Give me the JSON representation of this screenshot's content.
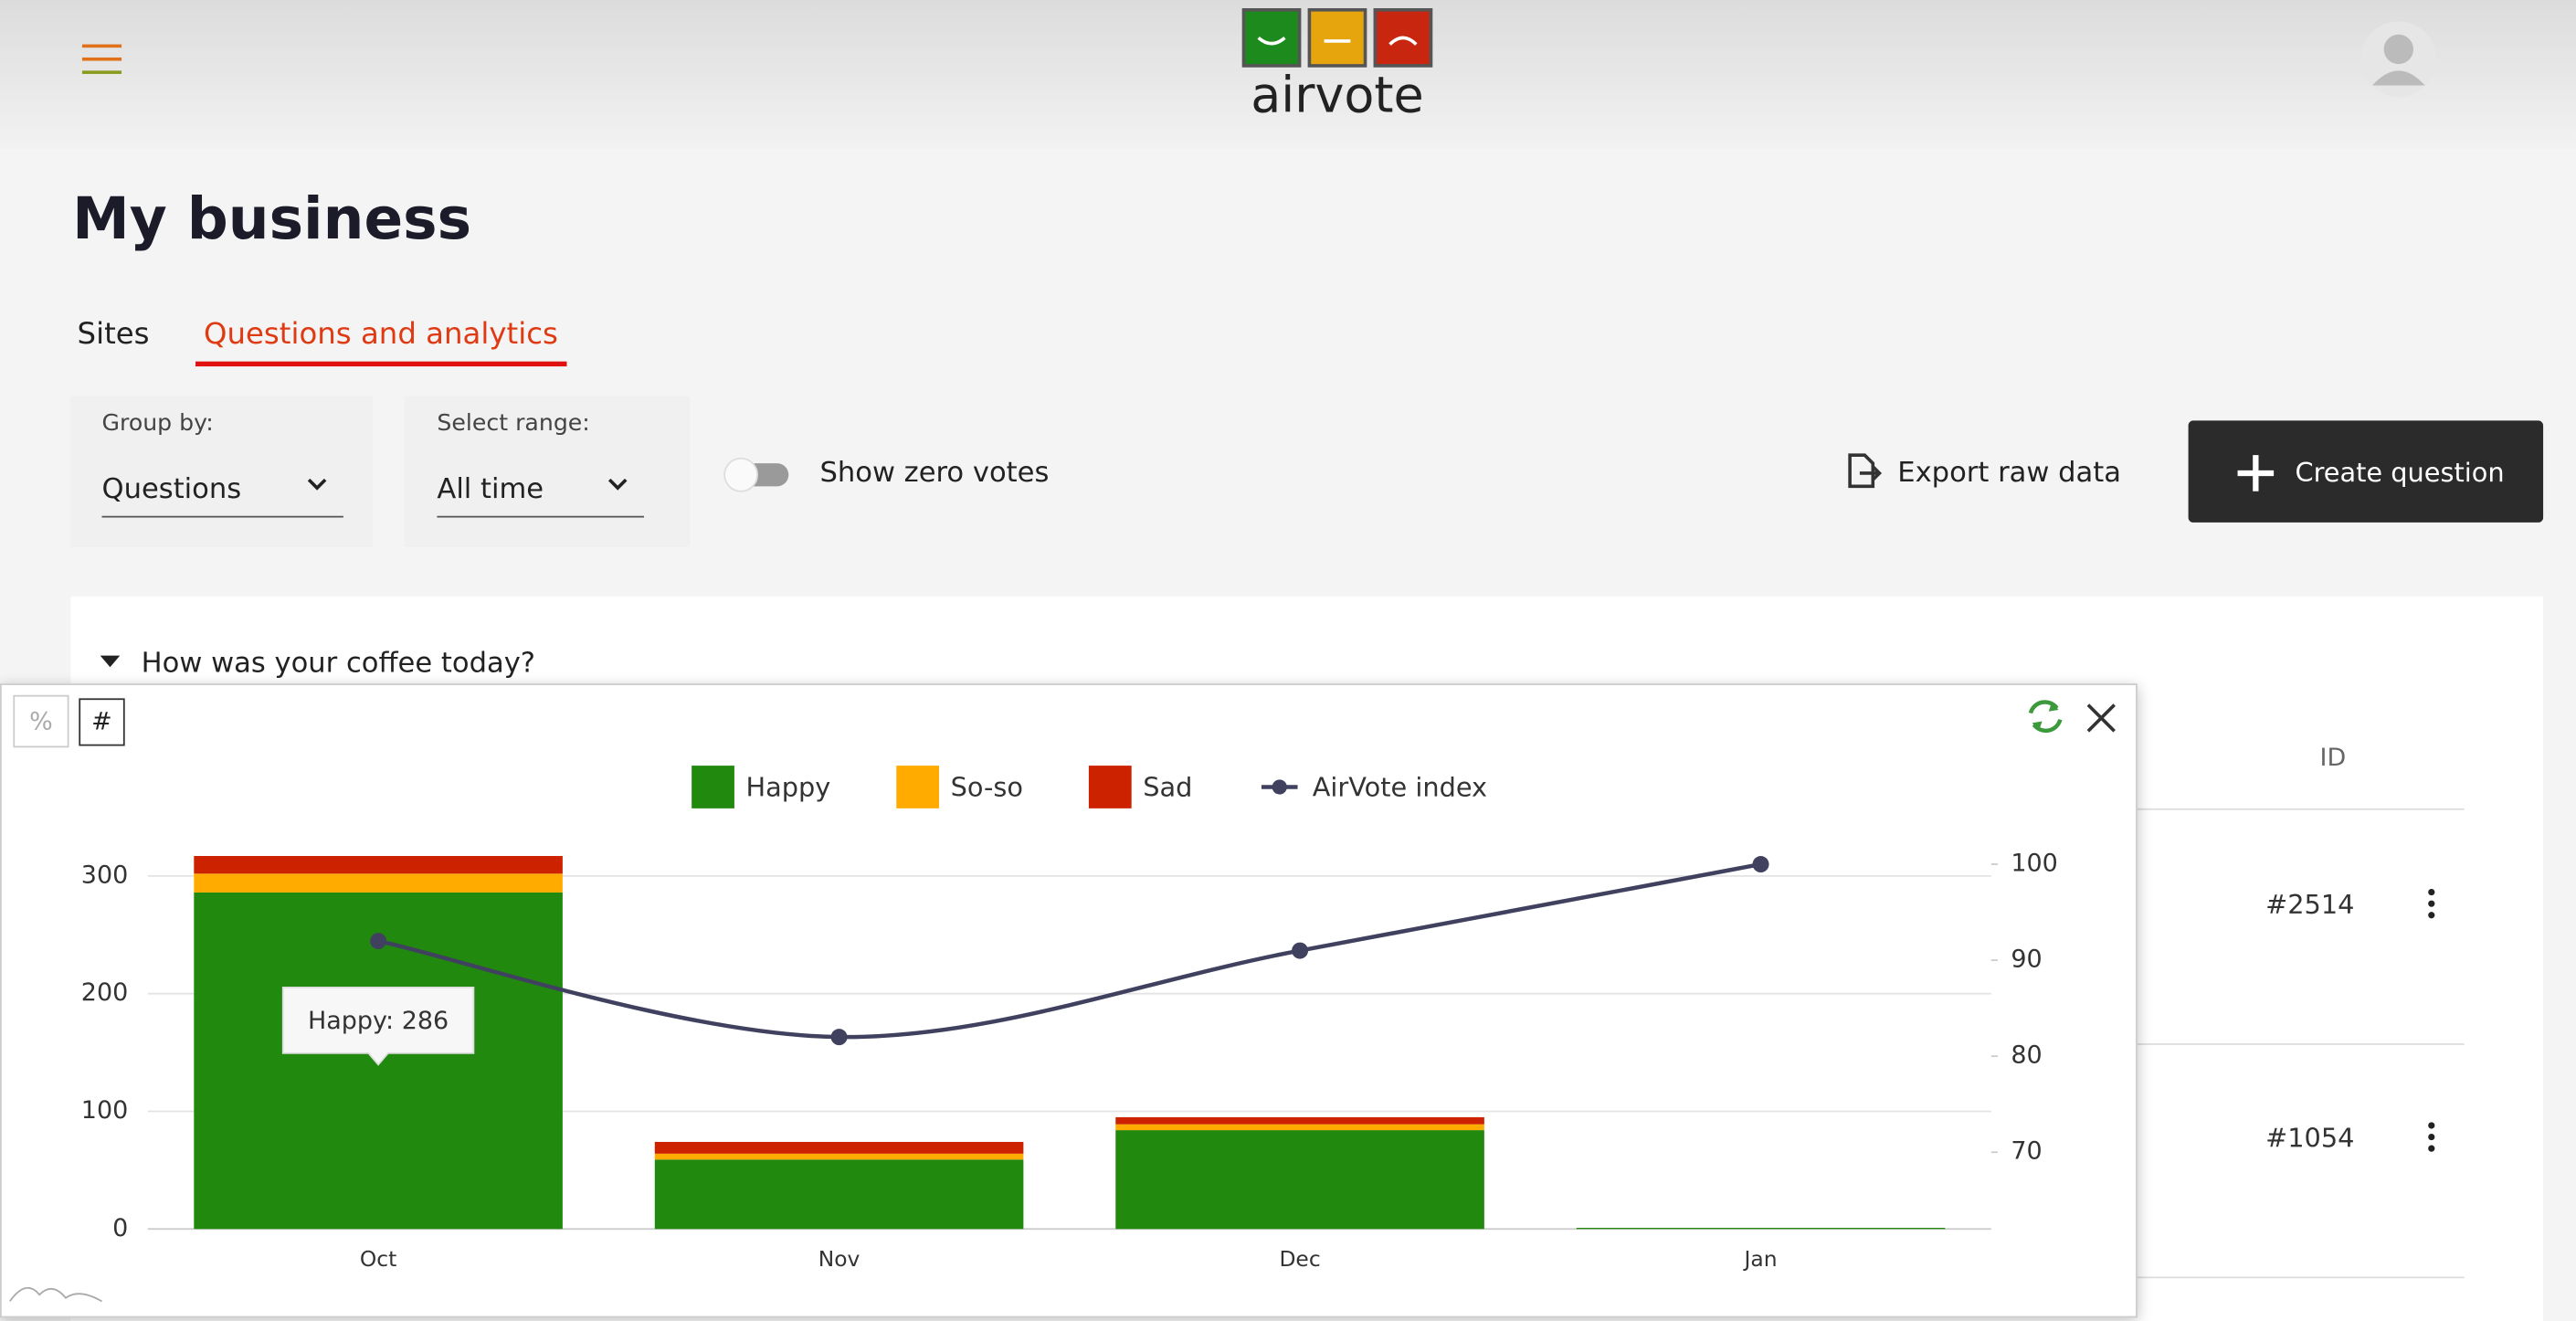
{
  "header": {
    "logo": "airvote"
  },
  "page": {
    "title": "My business",
    "tabs": [
      "Sites",
      "Questions and analytics"
    ]
  },
  "filters": {
    "group_by_label": "Group by:",
    "group_by_value": "Questions",
    "range_label": "Select range:",
    "range_value": "All time",
    "toggle": "Show zero votes"
  },
  "actions": {
    "export": "Export raw data",
    "create": "Create question"
  },
  "question": "How was your coffee today?",
  "table": {
    "id_header": "ID",
    "ids": [
      "#2514",
      "#1054"
    ]
  },
  "chart_toggles": [
    "%",
    "#"
  ],
  "chart_data": {
    "type": "bar",
    "stacked": true,
    "categories": [
      "Oct",
      "Nov",
      "Dec",
      "Jan"
    ],
    "series": [
      {
        "name": "Happy",
        "color": "#22890f",
        "values": [
          286,
          59,
          84,
          1
        ]
      },
      {
        "name": "So-so",
        "color": "#ffab00",
        "values": [
          16,
          5,
          5,
          0
        ]
      },
      {
        "name": "Sad",
        "color": "#cc2200",
        "values": [
          15,
          10,
          6,
          0
        ]
      },
      {
        "name": "AirVote index",
        "color": "#40415f",
        "values": [
          92,
          82,
          91,
          100
        ],
        "axis": "y2",
        "type": "line"
      }
    ],
    "ylim": [
      0,
      310
    ],
    "yticks": [
      0,
      100,
      200,
      300
    ],
    "y2lim": [
      62,
      100
    ],
    "y2ticks": [
      70,
      80,
      90,
      100
    ],
    "grid": true,
    "legend": "top",
    "tooltip": "Happy: 286"
  }
}
